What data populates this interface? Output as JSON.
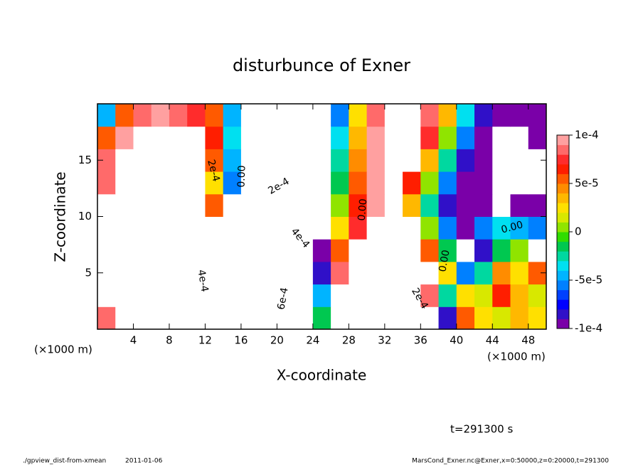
{
  "chart_data": {
    "type": "contour",
    "title": "disturbunce of Exner",
    "xlabel": "X-coordinate",
    "ylabel": "Z-coordinate",
    "xunit": "(×1000 m)",
    "yunit": "(×1000 m)",
    "time_label": "t=291300 s",
    "footer_left": "./gpview_dist-from-xmean",
    "footer_date": "2011-01-06",
    "footer_right": "MarsCond_Exner.nc@Exner,x=0:50000,z=0:20000,t=291300",
    "xlim": [
      0,
      50
    ],
    "ylim": [
      0,
      20
    ],
    "xticks": [
      4,
      8,
      12,
      16,
      20,
      24,
      28,
      32,
      36,
      40,
      44,
      48
    ],
    "yticks": [
      5,
      10,
      15
    ],
    "clim": [
      -0.0001,
      0.0001
    ],
    "cticks": [
      {
        "value": -0.0001,
        "label": "-1e-4"
      },
      {
        "value": -5e-05,
        "label": "-5e-5"
      },
      0,
      {
        "value": 5e-05,
        "label": "5e-5"
      },
      {
        "value": 0.0001,
        "label": "1e-4"
      }
    ],
    "colors": [
      "#7a00a8",
      "#3010c8",
      "#0000ff",
      "#0040ff",
      "#0080ff",
      "#00b4ff",
      "#00e0f0",
      "#00d8a0",
      "#00c850",
      "#30dc00",
      "#90e400",
      "#d8e800",
      "#ffe000",
      "#ffb800",
      "#ff8c00",
      "#ff5a00",
      "#ff1e00",
      "#ff2c2c",
      "#ff6a6a",
      "#ffa0a0"
    ],
    "contour_labels": [
      "2e-4",
      "0.00",
      "4e-4",
      "2e-4",
      "4e-4",
      "6e-4",
      "0.00",
      "2e-4",
      "0.00",
      "0.00"
    ],
    "x": [
      1,
      3,
      5,
      7,
      9,
      11,
      13,
      15,
      17,
      19,
      21,
      23,
      25,
      27,
      29,
      31,
      33,
      35,
      37,
      39,
      41,
      43,
      45,
      47,
      49
    ],
    "y": [
      1,
      3,
      5,
      7,
      9,
      11,
      13,
      15,
      17,
      19
    ],
    "z": [
      [
        8e-05,
        0.0003,
        0.0003,
        0.0003,
        0.0003,
        0.0003,
        0.0003,
        -0.0003,
        -0.0003,
        -0.0003,
        -0.0003,
        -0.0003,
        -2e-05,
        0.0003,
        0.0003,
        0.0003,
        0.0003,
        0.0003,
        0.0003,
        -8e-05,
        5e-05,
        2e-05,
        1e-05,
        3e-05,
        2e-05
      ],
      [
        0.0003,
        0.0003,
        0.0003,
        0.0003,
        0.0003,
        0.0003,
        0.0003,
        -0.0003,
        -0.0003,
        -0.0003,
        -0.0003,
        -0.0003,
        -5e-05,
        0.0003,
        0.0003,
        0.0003,
        0.0003,
        0.0003,
        8e-05,
        -3e-05,
        2e-05,
        1e-05,
        6e-05,
        3e-05,
        1e-05
      ],
      [
        0.0003,
        0.0003,
        0.0003,
        0.0003,
        0.0003,
        0.0003,
        0.0003,
        -0.0003,
        -0.0003,
        -0.0003,
        -0.0003,
        -0.0003,
        -8e-05,
        8e-05,
        0.0003,
        0.0003,
        0.0003,
        0.0003,
        0.0003,
        2e-05,
        -6e-05,
        -3e-05,
        4e-05,
        2e-05,
        5e-05
      ],
      [
        0.0003,
        0.0003,
        0.0003,
        0.0003,
        0.0003,
        0.0003,
        0.0003,
        -0.0003,
        -0.0003,
        -0.0003,
        -0.0003,
        -0.0003,
        -0.0001,
        5e-05,
        0.0003,
        0.0003,
        0.0003,
        0.0003,
        5e-05,
        -2e-05,
        -0.0003,
        -8e-05,
        -2e-05,
        0,
        0.0003
      ],
      [
        0.0003,
        0.0003,
        0.0003,
        0.0003,
        0.0003,
        0.0003,
        0.0003,
        -0.0003,
        -0.0003,
        -0.0003,
        -0.0003,
        -0.0003,
        -0.0003,
        2e-05,
        7e-05,
        0.0003,
        0.0003,
        0.0003,
        0,
        -6e-05,
        -9e-05,
        -6e-05,
        -4e-05,
        -5e-05,
        -6e-05
      ],
      [
        0.0003,
        0.0003,
        0.0003,
        0.0003,
        0.0003,
        0.0003,
        5e-05,
        -0.0003,
        -0.0003,
        -0.0003,
        -0.0003,
        -0.0003,
        -0.0003,
        0,
        6e-05,
        9e-05,
        0.0003,
        3e-05,
        -3e-05,
        -8e-05,
        -0.0001,
        -9e-05,
        -0.0003,
        -0.0001,
        -9e-05
      ],
      [
        8e-05,
        0.0003,
        0.0003,
        0.0003,
        0.0003,
        0.0003,
        2e-05,
        -6e-05,
        -0.0003,
        -0.0003,
        -0.0003,
        -0.0003,
        -0.0003,
        -2e-05,
        5e-05,
        9e-05,
        0.0003,
        6e-05,
        0,
        -6e-05,
        -9e-05,
        -0.0001,
        -0.0003,
        -0.0003,
        -0.0003
      ],
      [
        8e-05,
        0.0003,
        0.0003,
        0.0003,
        0.0003,
        0.0003,
        5e-05,
        -5e-05,
        -0.0003,
        -0.0003,
        -0.0003,
        -0.0003,
        -0.0003,
        -3e-05,
        4e-05,
        9e-05,
        0.0003,
        0.0003,
        3e-05,
        -3e-05,
        -8e-05,
        -0.0001,
        -0.0003,
        -0.0003,
        -0.0003
      ],
      [
        5e-05,
        9e-05,
        0.0003,
        0.0003,
        0.0003,
        0.0003,
        6e-05,
        -4e-05,
        -0.0003,
        -0.0003,
        -0.0003,
        -0.0003,
        -0.0003,
        -4e-05,
        3e-05,
        9e-05,
        0.0003,
        0.0003,
        7e-05,
        0,
        -6e-05,
        -9e-05,
        -0.0003,
        -0.0003,
        -0.0001
      ],
      [
        -5e-05,
        5e-05,
        8e-05,
        9e-05,
        8e-05,
        7e-05,
        5e-05,
        -5e-05,
        -0.0003,
        -0.0003,
        -0.0003,
        -0.0003,
        -0.0003,
        -6e-05,
        2e-05,
        8e-05,
        0.0003,
        0.0003,
        8e-05,
        3e-05,
        -4e-05,
        -8e-05,
        -0.0001,
        -0.0001,
        -9e-05
      ]
    ]
  }
}
